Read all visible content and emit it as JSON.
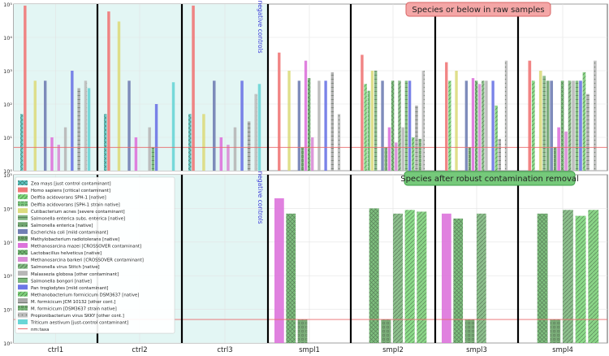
{
  "colors": {
    "ctrl_bg": "#e3f6f4",
    "panel_bg": "#ffffff",
    "grid": "#e3e3e3",
    "nm_line": "#e8696b",
    "sample_sep": "#000000",
    "top_title_bg": "#f4a6a6",
    "top_title_border": "#d86565",
    "bottom_title_bg": "#75c97a",
    "bottom_title_border": "#3e9e48",
    "neg_label": "#3a3ad8"
  },
  "top_title": "Species or below in raw samples",
  "bottom_title": "Species after robust contamination removal",
  "negative_label": "negative controls",
  "legend_nm": "nm:taxa",
  "chart_data": [
    {
      "type": "bar",
      "panel": "top",
      "title": "Species or below in raw samples",
      "yscale": "log",
      "ylim": [
        1,
        100000
      ],
      "yticks": [
        "10⁰",
        "10¹",
        "10²",
        "10³",
        "10⁴",
        "10⁵"
      ],
      "nm_threshold": 5,
      "categories": [
        "ctrl1",
        "ctrl2",
        "ctrl3",
        "smpl1",
        "smpl2",
        "smpl3",
        "smpl4"
      ],
      "series": [
        {
          "name": "Zea mays [just control contaminant]",
          "color": "#5cc6c3",
          "pattern": "x",
          "values": [
            50,
            50,
            50,
            null,
            null,
            null,
            null
          ]
        },
        {
          "name": "Homo sapiens [critical contaminant]",
          "color": "#ef7777",
          "pattern": "",
          "values": [
            90000,
            60000,
            90000,
            3500,
            3000,
            1800,
            2000
          ]
        },
        {
          "name": "Delftia acidovorans SPH-1 [native]",
          "color": "#7ed87c",
          "pattern": "/",
          "values": [
            null,
            null,
            null,
            null,
            400,
            500,
            500
          ]
        },
        {
          "name": "Delftia acidovorans [SPH-1 strain native]",
          "color": "#79c57c",
          "pattern": "o",
          "values": [
            null,
            null,
            null,
            null,
            250,
            null,
            null
          ]
        },
        {
          "name": "Cutibacterium acnes [severe contaminant]",
          "color": "#dcdc7e",
          "pattern": "",
          "values": [
            500,
            30000,
            50,
            1000,
            1000,
            1000,
            1000
          ]
        },
        {
          "name": "Salmonella enterica subs. enterica [native]",
          "color": "#7fb37f",
          "pattern": "-",
          "values": [
            null,
            null,
            null,
            null,
            1000,
            null,
            700
          ]
        },
        {
          "name": "Salmonella enterica [native]",
          "color": "#6fa46f",
          "pattern": ".",
          "values": [
            null,
            null,
            null,
            null,
            null,
            null,
            500
          ]
        },
        {
          "name": "Escherichia coli [mild contaminant]",
          "color": "#717fb4",
          "pattern": "",
          "values": [
            500,
            500,
            500,
            500,
            500,
            500,
            500
          ]
        },
        {
          "name": "Methylobacterium radiotolerans [native]",
          "color": "#6da46a",
          "pattern": "o",
          "values": [
            null,
            null,
            null,
            5,
            5,
            5,
            5
          ]
        },
        {
          "name": "Methanosarcina mazei [CROSSOVER contaminant]",
          "color": "#dd73dc",
          "pattern": "",
          "values": [
            10,
            10,
            10,
            2000,
            20,
            600,
            20
          ]
        },
        {
          "name": "Lactobacillus helveticus [native]",
          "color": "#70b870",
          "pattern": "x",
          "values": [
            null,
            null,
            null,
            600,
            500,
            500,
            500
          ]
        },
        {
          "name": "Methanosarcina barkeri [CROSSOVER contaminant]",
          "color": "#d98cd6",
          "pattern": "",
          "values": [
            6,
            null,
            6,
            10,
            7,
            400,
            15
          ]
        },
        {
          "name": "Salmonella virus Stitch [native]",
          "color": "#80b880",
          "pattern": "/",
          "values": [
            null,
            null,
            null,
            null,
            500,
            500,
            500
          ]
        },
        {
          "name": "Malassezia globosa [other contaminant]",
          "color": "#b7b7b7",
          "pattern": "",
          "values": [
            20,
            20,
            20,
            500,
            20,
            500,
            500
          ]
        },
        {
          "name": "Salmonella bongori [native]",
          "color": "#78b878",
          "pattern": "-",
          "values": [
            null,
            5,
            null,
            null,
            500,
            null,
            500
          ]
        },
        {
          "name": "Pan troglodytes [mild contaminant]",
          "color": "#6c76e6",
          "pattern": "",
          "values": [
            1000,
            100,
            500,
            500,
            500,
            500,
            500
          ]
        },
        {
          "name": "Methanobacterium formicicum DSM3637 [native]",
          "color": "#7dd07a",
          "pattern": "/",
          "values": [
            null,
            null,
            null,
            null,
            10,
            90,
            900
          ]
        },
        {
          "name": "M. formicicum JCM 10132 [other cont.]",
          "color": "#a9a9a9",
          "pattern": "-",
          "values": [
            300,
            null,
            30,
            900,
            90,
            9,
            200
          ]
        },
        {
          "name": "M. formicicum [DSM3637 strain native]",
          "color": "#78b578",
          "pattern": "o",
          "values": [
            null,
            null,
            null,
            null,
            9,
            null,
            null
          ]
        },
        {
          "name": "Propionibacterium virus SKKY [other cont.]",
          "color": "#bdbdbd",
          "pattern": ".",
          "values": [
            500,
            null,
            200,
            50,
            1000,
            2000,
            2000
          ]
        },
        {
          "name": "Triticum aestivum [just-control contaminant]",
          "color": "#69d6d6",
          "pattern": "",
          "values": [
            300,
            450,
            400,
            null,
            null,
            null,
            null
          ]
        }
      ]
    },
    {
      "type": "bar",
      "panel": "bottom",
      "title": "Species after robust contamination removal",
      "yscale": "log",
      "ylim": [
        1,
        100000
      ],
      "yticks": [
        "10⁰",
        "10¹",
        "10²",
        "10³",
        "10⁴",
        "10⁵"
      ],
      "nm_threshold": 5,
      "categories": [
        "ctrl1",
        "ctrl2",
        "ctrl3",
        "smpl1",
        "smpl2",
        "smpl3",
        "smpl4"
      ],
      "series": [
        {
          "name": "Methanosarcina mazei [CROSSOVER contaminant]",
          "color": "#dd73dc",
          "pattern": "",
          "values": [
            null,
            null,
            null,
            20000,
            null,
            7000,
            null
          ]
        },
        {
          "name": "Lactobacillus helveticus [native]",
          "color": "#70b870",
          "pattern": "x",
          "values": [
            null,
            null,
            null,
            7000,
            10000,
            5000,
            7000
          ]
        },
        {
          "name": "Methylobacterium radiotolerans [native]",
          "color": "#6da46a",
          "pattern": "o",
          "values": [
            null,
            null,
            null,
            5,
            5,
            5,
            5
          ]
        },
        {
          "name": "Salmonella virus Stitch [native]",
          "color": "#80b880",
          "pattern": "/",
          "values": [
            null,
            null,
            null,
            null,
            7000,
            7000,
            9000
          ]
        },
        {
          "name": "Delftia acidovorans SPH-1 [native]",
          "color": "#7ed87c",
          "pattern": "/",
          "values": [
            null,
            null,
            null,
            null,
            9000,
            null,
            6000
          ]
        },
        {
          "name": "Methanobacterium formicicum DSM3637 [native]",
          "color": "#7dd07a",
          "pattern": "/",
          "values": [
            null,
            null,
            null,
            null,
            8000,
            null,
            9000
          ]
        }
      ]
    }
  ]
}
